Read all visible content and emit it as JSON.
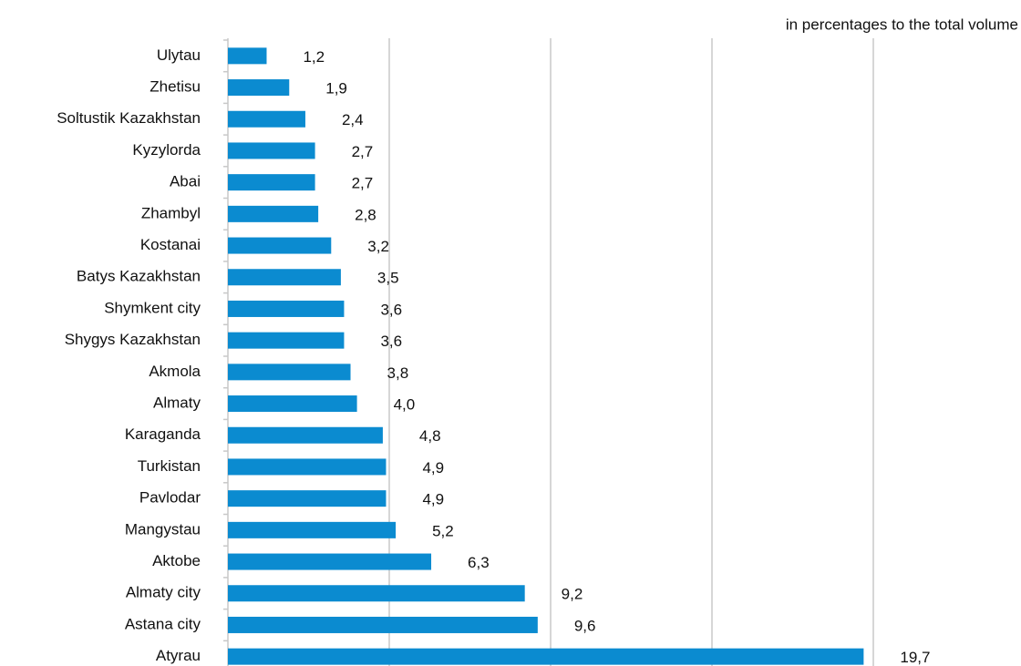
{
  "chart_data": {
    "type": "bar",
    "orientation": "horizontal",
    "subtitle": "in percentages to the total volume",
    "categories": [
      "Ulytau",
      "Zhetisu",
      "Soltustik Kazakhstan",
      "Kyzylorda",
      "Abai",
      "Zhambyl",
      "Kostanai",
      "Batys Kazakhstan",
      "Shymkent city",
      "Shygys Kazakhstan",
      "Akmola",
      "Almaty",
      "Karaganda",
      "Turkistan",
      "Pavlodar",
      "Mangystau",
      "Aktobe",
      "Almaty city",
      "Astana city",
      "Atyrau"
    ],
    "values": [
      1.2,
      1.9,
      2.4,
      2.7,
      2.7,
      2.8,
      3.2,
      3.5,
      3.6,
      3.6,
      3.8,
      4.0,
      4.8,
      4.9,
      4.9,
      5.2,
      6.3,
      9.2,
      9.6,
      19.7
    ],
    "value_labels": [
      "1,2",
      "1,9",
      "2,4",
      "2,7",
      "2,7",
      "2,8",
      "3,2",
      "3,5",
      "3,6",
      "3,6",
      "3,8",
      "4,0",
      "4,8",
      "4,9",
      "4,9",
      "5,2",
      "6,3",
      "9,2",
      "9,6",
      "19,7"
    ],
    "color": "#0b8bd0",
    "xlim": [
      0,
      20
    ],
    "xticks": [
      0,
      5,
      10,
      15,
      20
    ],
    "grid": true
  }
}
